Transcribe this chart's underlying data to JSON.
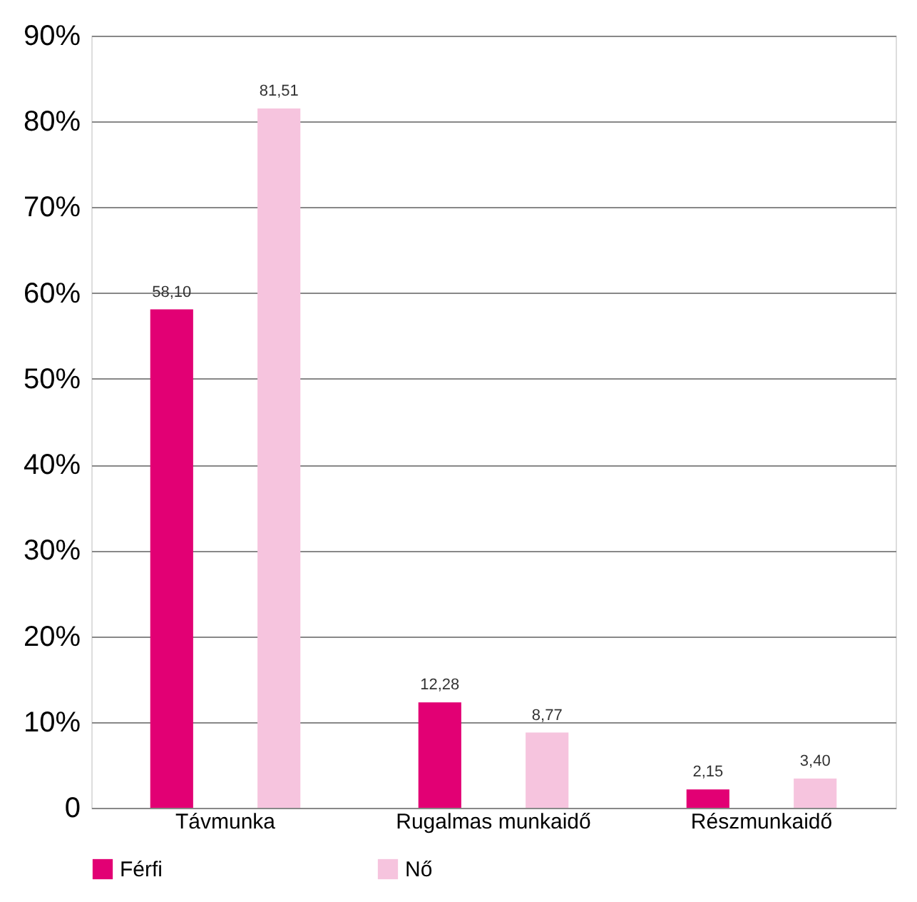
{
  "chart_data": {
    "type": "bar",
    "categories": [
      "Távmunka",
      "Rugalmas munkaidő",
      "Részmunkaidő"
    ],
    "series": [
      {
        "name": "Férfi",
        "color": "#e20074",
        "values": [
          58.1,
          12.28,
          2.15
        ],
        "value_labels": [
          "58,10",
          "12,28",
          "2,15"
        ]
      },
      {
        "name": "Nő",
        "color": "#f6c4de",
        "values": [
          81.51,
          8.77,
          3.4
        ],
        "value_labels": [
          "81,51",
          "8,77",
          "3,40"
        ]
      }
    ],
    "ylim": [
      0,
      90
    ],
    "yticks": [
      0,
      {
        "value": 10,
        "label": "10%"
      },
      {
        "value": 20,
        "label": "20%"
      },
      {
        "value": 30,
        "label": "30%"
      },
      {
        "value": 40,
        "label": "40%"
      },
      {
        "value": 50,
        "label": "50%"
      },
      {
        "value": 60,
        "label": "60%"
      },
      {
        "value": 70,
        "label": "70%"
      },
      {
        "value": 80,
        "label": "80%"
      },
      {
        "value": 90,
        "label": "90%"
      }
    ],
    "grid": "y",
    "legend": "bottom"
  }
}
